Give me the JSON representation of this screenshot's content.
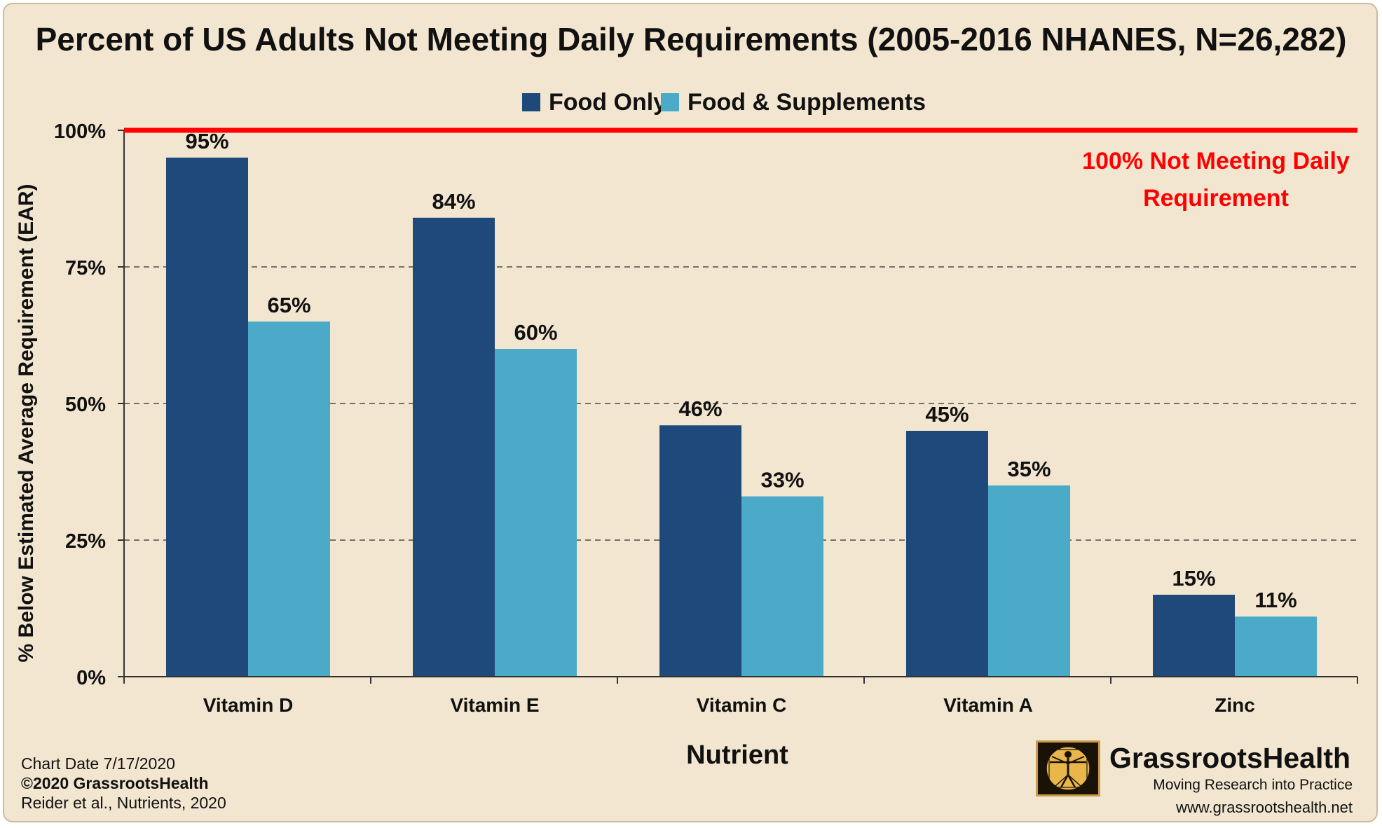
{
  "title": "Percent of US Adults Not Meeting Daily Requirements (2005-2016 NHANES, N=26,282)",
  "legend": [
    {
      "label": "Food Only",
      "color": "#1f487b"
    },
    {
      "label": "Food & Supplements",
      "color": "#4aaac8"
    }
  ],
  "threshold_label_line1": "100% Not Meeting Daily",
  "threshold_label_line2": "Requirement",
  "threshold_color": "#ff0000",
  "footer": {
    "chart_date": "Chart Date 7/17/2020",
    "copyright": "©2020 GrassrootsHealth",
    "citation": "Reider et al., Nutrients, 2020"
  },
  "logo": {
    "name": "GrassrootsHealth",
    "tagline": "Moving Research into Practice",
    "url": "www.grassrootshealth.net"
  },
  "chart_data": {
    "type": "bar",
    "title": "Percent of US Adults Not Meeting Daily Requirements (2005-2016 NHANES, N=26,282)",
    "xlabel": "Nutrient",
    "ylabel": "% Below Estimated Average Requirement (EAR)",
    "categories": [
      "Vitamin D",
      "Vitamin E",
      "Vitamin C",
      "Vitamin A",
      "Zinc"
    ],
    "series": [
      {
        "name": "Food Only",
        "values": [
          95,
          84,
          46,
          45,
          15
        ],
        "labels": [
          "95%",
          "84%",
          "46%",
          "45%",
          "15%"
        ]
      },
      {
        "name": "Food & Supplements",
        "values": [
          65,
          60,
          33,
          35,
          11
        ],
        "labels": [
          "65%",
          "60%",
          "33%",
          "35%",
          "11%"
        ]
      }
    ],
    "ylim": [
      0,
      100
    ],
    "yticks": [
      0,
      25,
      50,
      75,
      100
    ],
    "ytick_labels": [
      "0%",
      "25%",
      "50%",
      "75%",
      "100%"
    ],
    "grid": "dashed horizontal",
    "legend_position": "top-center",
    "reference_line": {
      "value": 100
    }
  }
}
